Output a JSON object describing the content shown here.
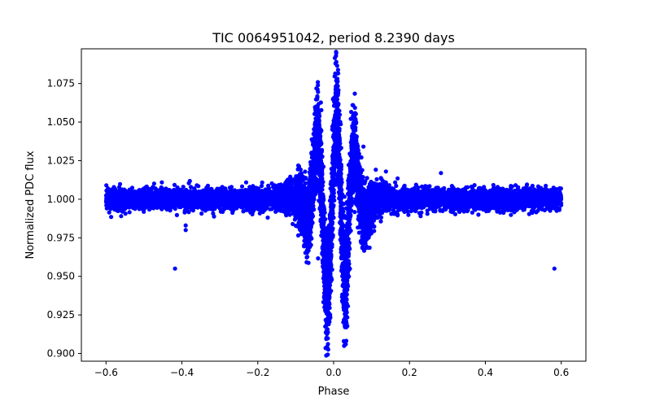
{
  "chart_data": {
    "type": "scatter",
    "title": "TIC 0064951042, period 8.2390 days",
    "xlabel": "Phase",
    "ylabel": "Normalized PDC flux",
    "xlim": [
      -0.665,
      0.665
    ],
    "ylim": [
      0.895,
      1.0975
    ],
    "xticks": [
      -0.6,
      -0.4,
      -0.2,
      0.0,
      0.2,
      0.4,
      0.6
    ],
    "xtick_labels": [
      "−0.6",
      "−0.4",
      "−0.2",
      "0.0",
      "0.2",
      "0.4",
      "0.6"
    ],
    "yticks": [
      0.9,
      0.925,
      0.95,
      0.975,
      1.0,
      1.025,
      1.05,
      1.075
    ],
    "ytick_labels": [
      "0.900",
      "0.925",
      "0.950",
      "0.975",
      "1.000",
      "1.025",
      "1.050",
      "1.075"
    ],
    "grid": false,
    "legend": "none",
    "marker_color": "#0000ff",
    "series": [
      {
        "x_range": [
          -0.6,
          0.6
        ],
        "baseline_flux": 1.0,
        "baseline_scatter": 0.006,
        "primary_peak": {
          "phase": 0.007,
          "flux": 1.089
        },
        "primary_dips": [
          {
            "phase": -0.017,
            "flux": 0.904
          },
          {
            "phase": 0.032,
            "flux": 0.906
          }
        ],
        "secondary_peaks": [
          {
            "phase": -0.043,
            "flux": 1.066
          },
          {
            "phase": 0.05,
            "flux": 1.061
          }
        ],
        "outer_dips": [
          {
            "phase": -0.068,
            "flux": 0.978
          },
          {
            "phase": 0.085,
            "flux": 0.98
          }
        ],
        "outliers": [
          {
            "x": -0.418,
            "y": 0.955
          },
          {
            "x": 0.582,
            "y": 0.955
          },
          {
            "x": -0.39,
            "y": 0.98
          },
          {
            "x": -0.39,
            "y": 0.983
          },
          {
            "x": 0.283,
            "y": 1.017
          },
          {
            "x": 0.138,
            "y": 1.018
          }
        ]
      }
    ]
  }
}
